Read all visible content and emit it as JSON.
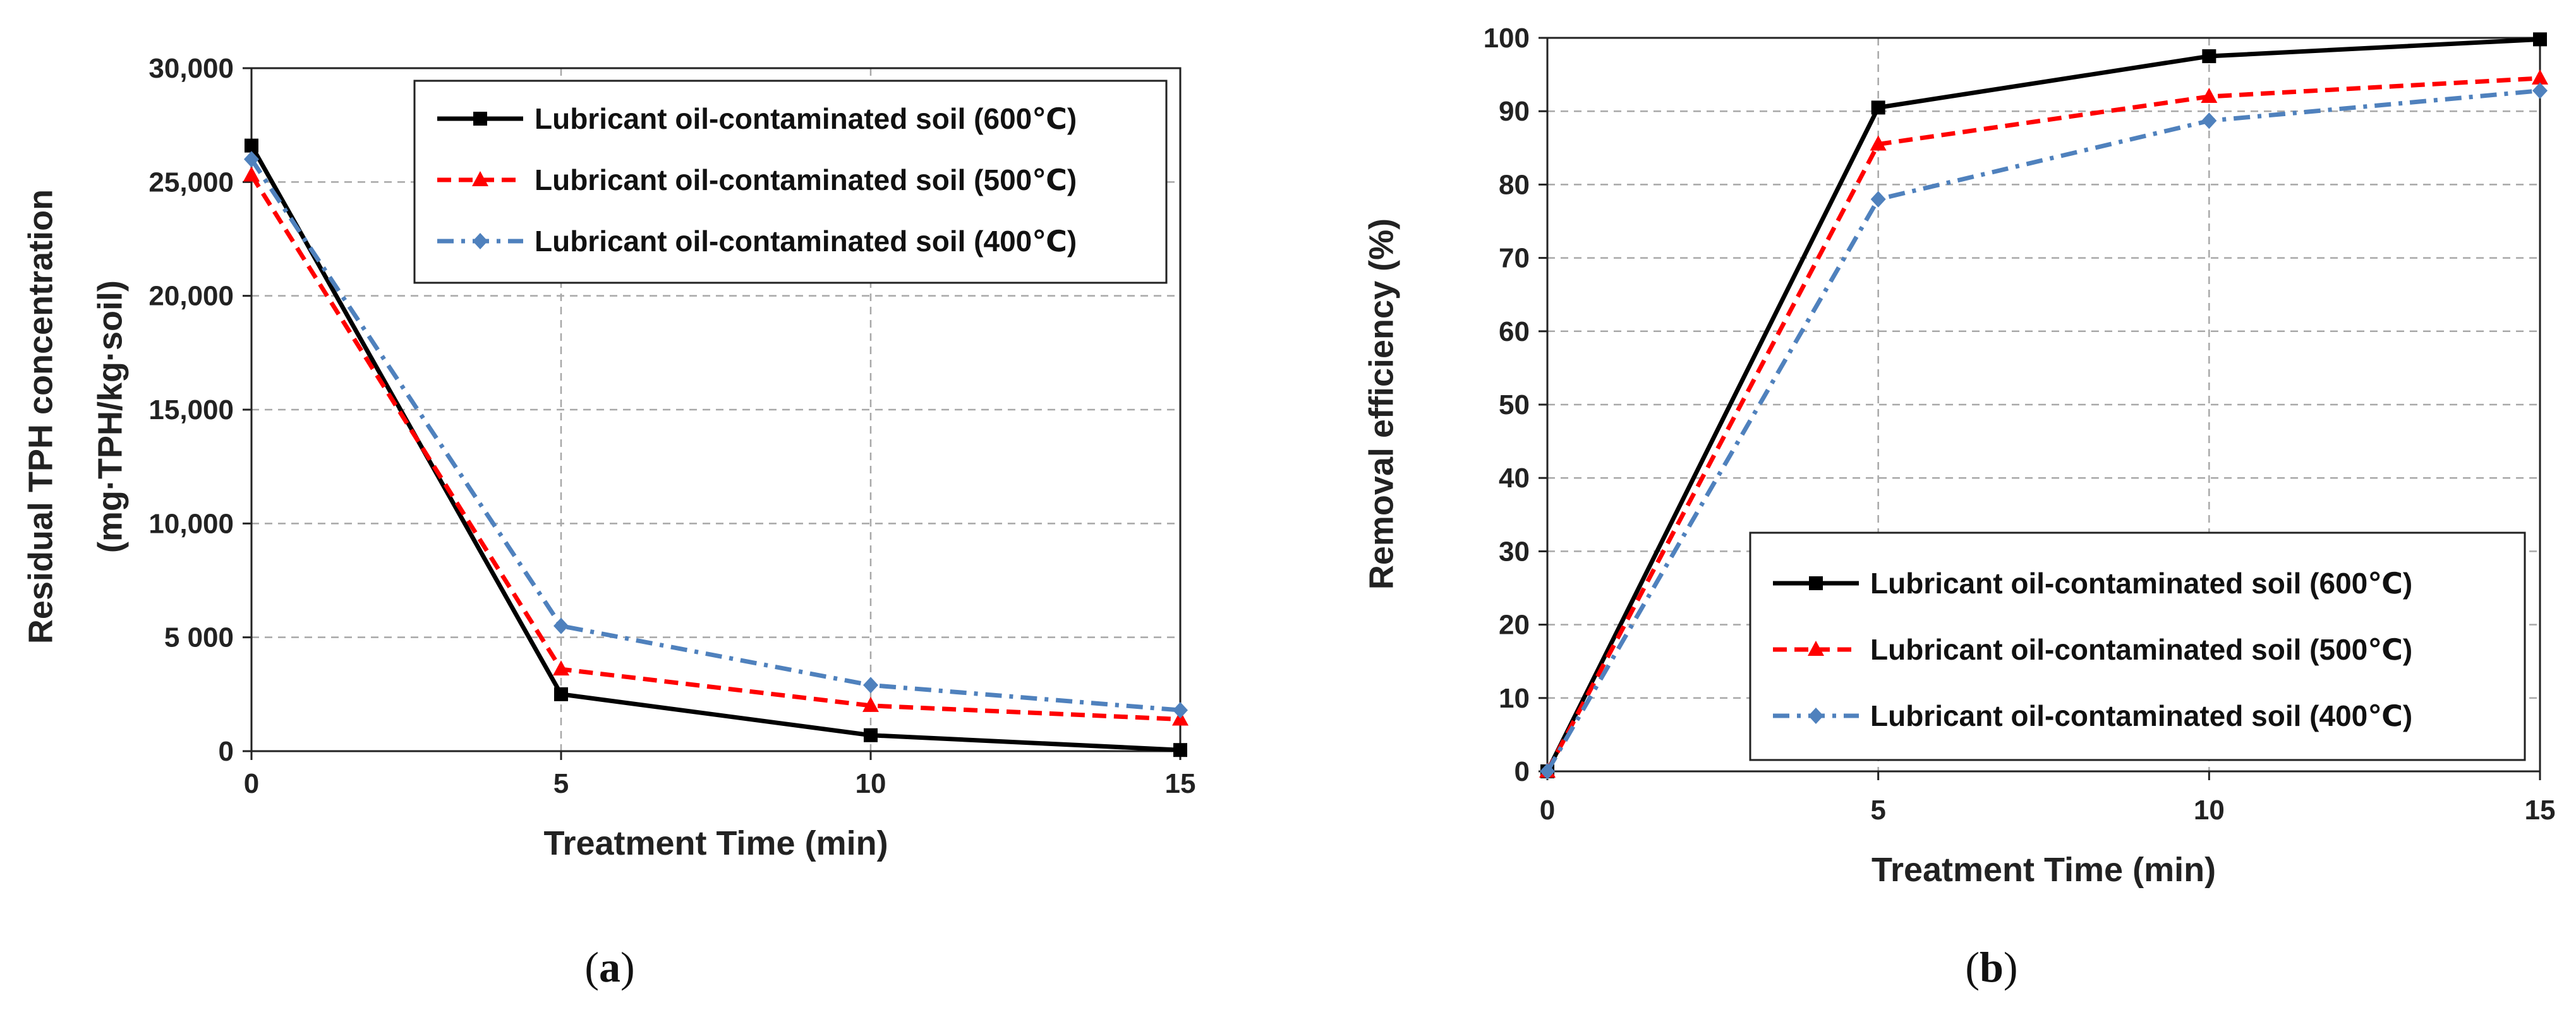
{
  "chart_data": [
    {
      "id": "a",
      "type": "line",
      "caption": "a",
      "title": "",
      "xlabel": "Treatment Time (min)",
      "ylabel_lines": [
        "Residual TPH concentration",
        "(mg·TPH/kg·soil)"
      ],
      "xlim": [
        0,
        15
      ],
      "ylim": [
        0,
        30000
      ],
      "xticks": [
        0,
        5,
        10,
        15
      ],
      "xtick_labels": [
        "0",
        "5",
        "10",
        "15"
      ],
      "yticks": [
        0,
        5000,
        10000,
        15000,
        20000,
        25000,
        30000
      ],
      "ytick_labels": [
        "0",
        "5 000",
        "10,000",
        "15,000",
        "20,000",
        "25,000",
        "30,000"
      ],
      "grid": true,
      "legend_position": "top-right",
      "x": [
        0,
        5,
        10,
        15
      ],
      "series": [
        {
          "name": "Lubricant oil-contaminated soil (600℃)",
          "values": [
            26600,
            2500,
            700,
            50
          ],
          "color": "#000000",
          "marker": "square",
          "dash": "solid"
        },
        {
          "name": "Lubricant oil-contaminated soil (500℃)",
          "values": [
            25300,
            3600,
            2000,
            1400
          ],
          "color": "#ff0000",
          "marker": "triangle",
          "dash": "dash"
        },
        {
          "name": "Lubricant oil-contaminated soil (400℃)",
          "values": [
            26000,
            5500,
            2900,
            1800
          ],
          "color": "#4f81bd",
          "marker": "diamond",
          "dash": "dashdot"
        }
      ]
    },
    {
      "id": "b",
      "type": "line",
      "caption": "b",
      "title": "",
      "xlabel": "Treatment Time (min)",
      "ylabel_lines": [
        "Removal efficiency (%)"
      ],
      "xlim": [
        0,
        15
      ],
      "ylim": [
        0,
        100
      ],
      "xticks": [
        0,
        5,
        10,
        15
      ],
      "xtick_labels": [
        "0",
        "5",
        "10",
        "15"
      ],
      "yticks": [
        0,
        10,
        20,
        30,
        40,
        50,
        60,
        70,
        80,
        90,
        100
      ],
      "ytick_labels": [
        "0",
        "10",
        "20",
        "30",
        "40",
        "50",
        "60",
        "70",
        "80",
        "90",
        "100"
      ],
      "grid": true,
      "legend_position": "bottom-right",
      "x": [
        0,
        5,
        10,
        15
      ],
      "series": [
        {
          "name": "Lubricant oil-contaminated soil (600℃)",
          "values": [
            0,
            90.5,
            97.5,
            99.8
          ],
          "color": "#000000",
          "marker": "square",
          "dash": "solid"
        },
        {
          "name": "Lubricant oil-contaminated soil (500℃)",
          "values": [
            0,
            85.5,
            92,
            94.5
          ],
          "color": "#ff0000",
          "marker": "triangle",
          "dash": "dash"
        },
        {
          "name": "Lubricant oil-contaminated soil (400℃)",
          "values": [
            0,
            78,
            88.7,
            92.8
          ],
          "color": "#4f81bd",
          "marker": "diamond",
          "dash": "dashdot"
        }
      ]
    }
  ]
}
